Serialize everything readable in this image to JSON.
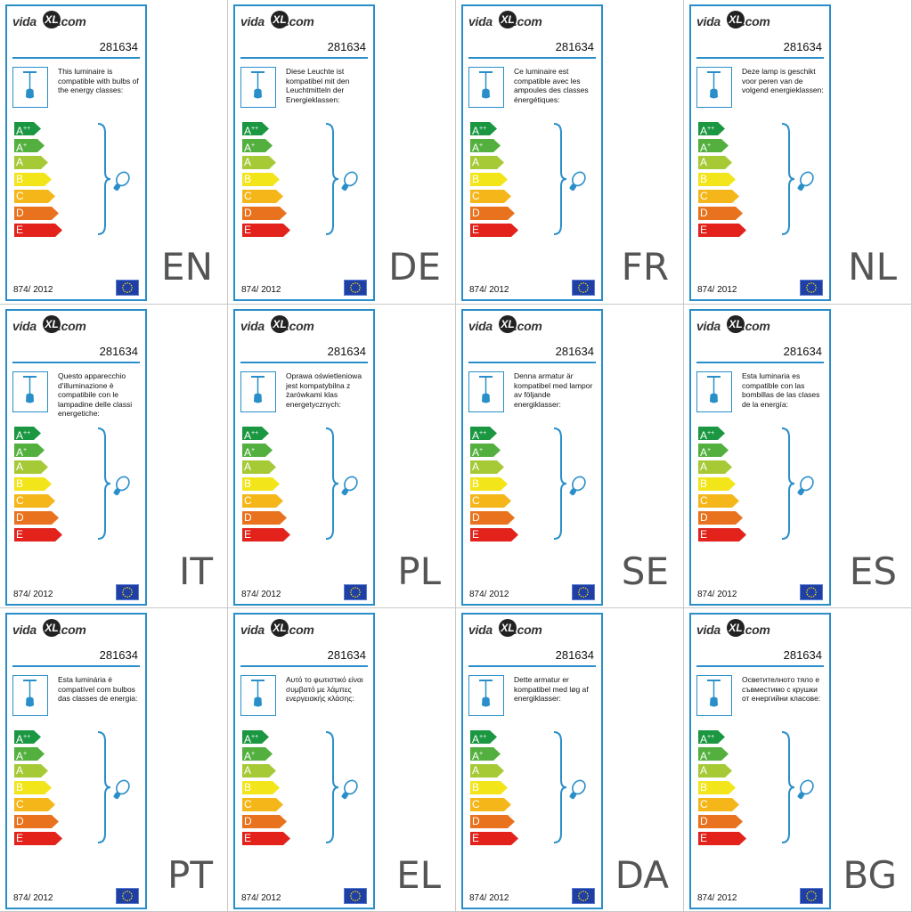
{
  "brand": {
    "pre": "vida",
    "mark": "XL",
    "post": ".com"
  },
  "product_number": "281634",
  "regulation": "874/ 2012",
  "energy_classes": [
    {
      "letter": "A",
      "sup": "++",
      "color": "#1a9740"
    },
    {
      "letter": "A",
      "sup": "+",
      "color": "#53b03e"
    },
    {
      "letter": "A",
      "sup": "",
      "color": "#a6c936"
    },
    {
      "letter": "B",
      "sup": "",
      "color": "#f2e51a"
    },
    {
      "letter": "C",
      "sup": "",
      "color": "#f5b61a"
    },
    {
      "letter": "D",
      "sup": "",
      "color": "#e9721e"
    },
    {
      "letter": "E",
      "sup": "",
      "color": "#e2221b"
    }
  ],
  "accent_color": "#2a8fc9",
  "icons": {
    "lamp": "pendant-lamp-icon",
    "bulb": "light-bulb-icon",
    "flag": "eu-flag-icon"
  },
  "panels": [
    {
      "lang": "EN",
      "text": "This luminaire is compatible with bulbs of the energy classes:"
    },
    {
      "lang": "DE",
      "text": "Diese Leuchte ist kompatibel mit den Leuchtmitteln der Energieklassen:"
    },
    {
      "lang": "FR",
      "text": "Ce luminaire est compatible avec les ampoules des classes énergétiques:"
    },
    {
      "lang": "NL",
      "text": "Deze lamp is geschikt voor peren van de volgend energieklassen:"
    },
    {
      "lang": "IT",
      "text": "Questo apparecchio d'illuminazione è compatibile con le lampadine delle classi energetiche:"
    },
    {
      "lang": "PL",
      "text": "Oprawa oświetleniowa jest kompatybilna z żarówkami klas energetycznych:"
    },
    {
      "lang": "SE",
      "text": "Denna armatur är kompatibel med lampor av följande energiklasser:"
    },
    {
      "lang": "ES",
      "text": "Esta luminaria es compatible con las bombillas de las clases de la energía:"
    },
    {
      "lang": "PT",
      "text": "Esta luminária é compatível com bulbos das classes de energia:"
    },
    {
      "lang": "EL",
      "text": "Αυτό το φωτιστικό είναι συμβατό με λάμπες ενεργειακής κλάσης:"
    },
    {
      "lang": "DA",
      "text": "Dette armatur er kompatibel med løg af energiklasser:"
    },
    {
      "lang": "BG",
      "text": "Осветителното тяло е съвместимо с крушки от енергийни класове:"
    }
  ]
}
